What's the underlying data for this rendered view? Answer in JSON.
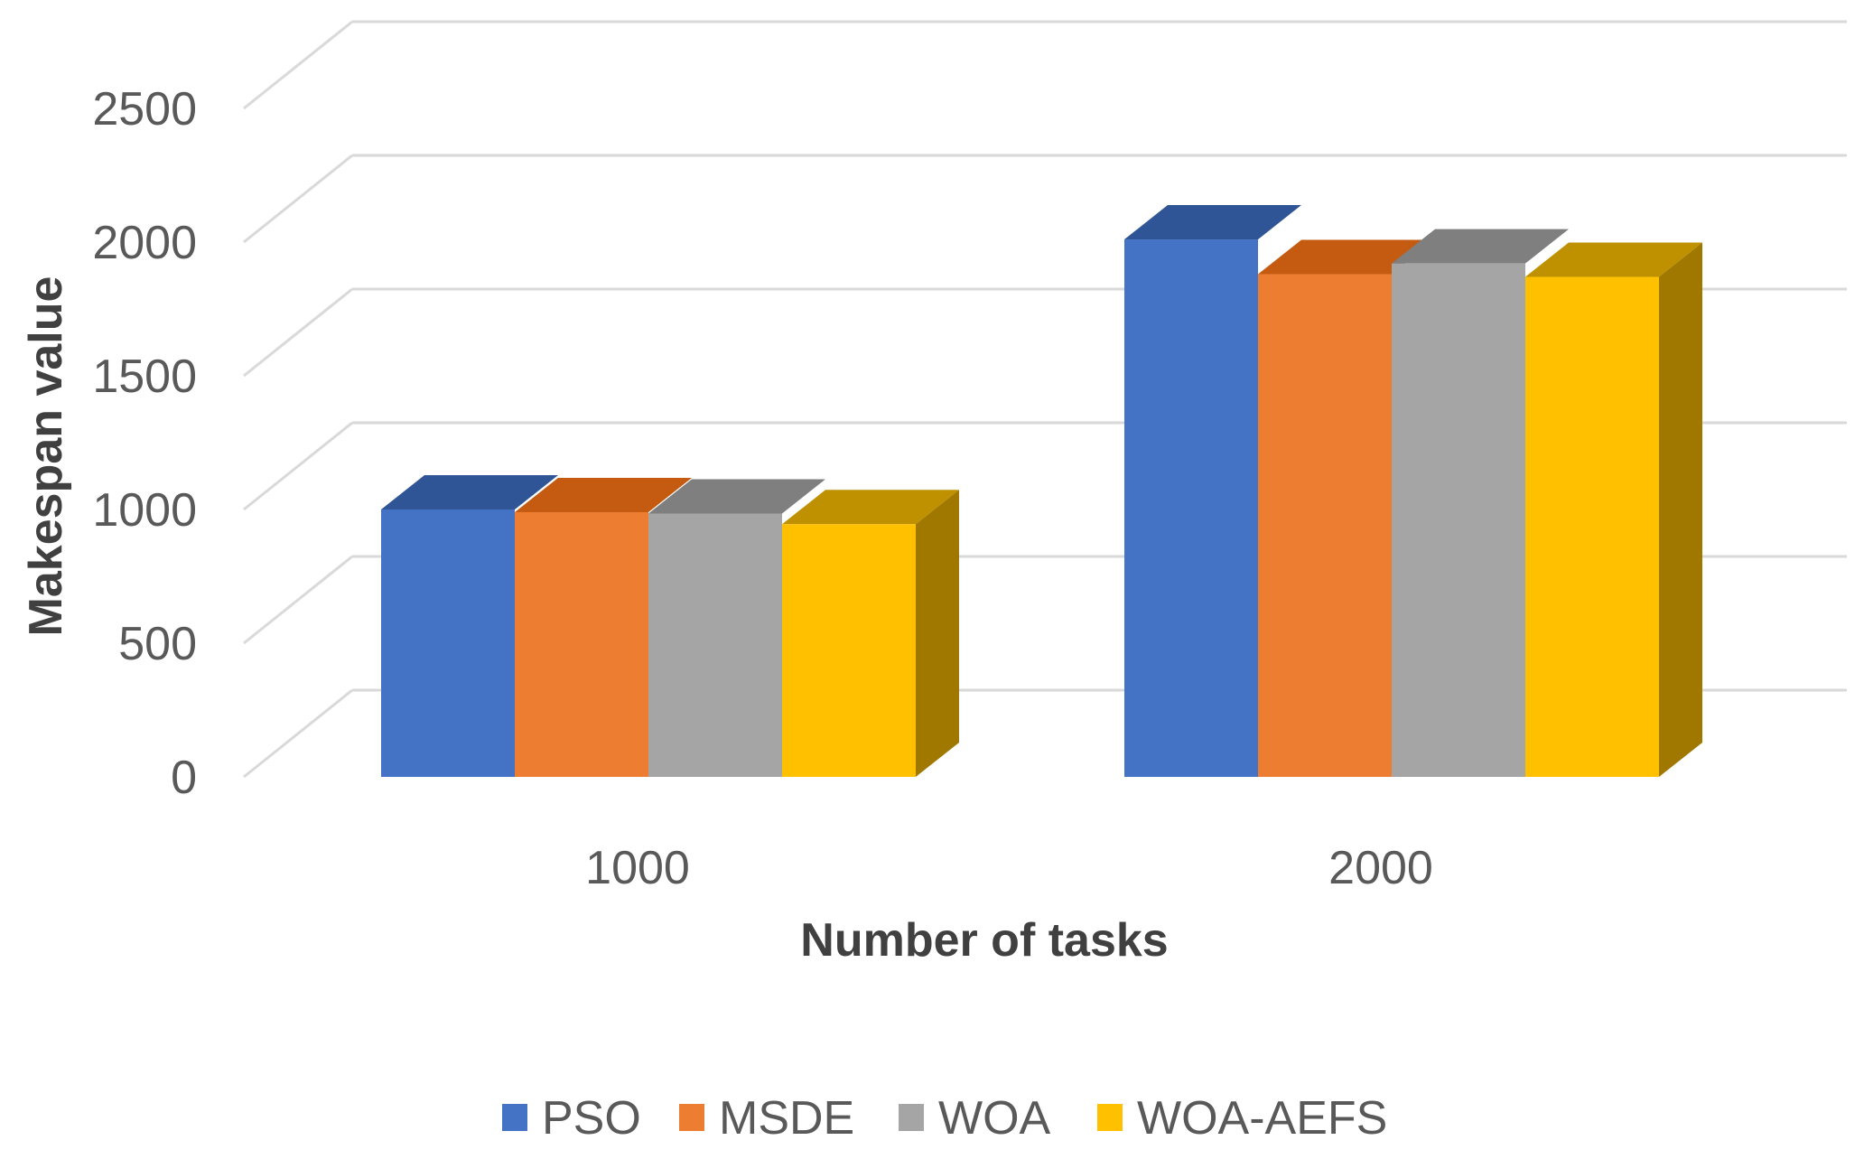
{
  "chart_data": {
    "type": "bar",
    "categories": [
      "1000",
      "2000"
    ],
    "series": [
      {
        "name": "PSO",
        "values": [
          1000,
          2010
        ]
      },
      {
        "name": "MSDE",
        "values": [
          990,
          1880
        ]
      },
      {
        "name": "WOA",
        "values": [
          985,
          1920
        ]
      },
      {
        "name": "WOA-AEFS",
        "values": [
          945,
          1870
        ]
      }
    ],
    "title": "",
    "xlabel": "Number of tasks",
    "ylabel": "Makespan  value",
    "ylim": [
      0,
      2500
    ],
    "yticks": [
      "0",
      "500",
      "1000",
      "1500",
      "2000",
      "2500"
    ],
    "grid": true,
    "legend": "bottom",
    "colors": {
      "PSO": {
        "front": "#4472C4",
        "top": "#2F5597",
        "side": "#2F5597"
      },
      "MSDE": {
        "front": "#ED7D31",
        "top": "#C55A11",
        "side": "#C55A11"
      },
      "WOA": {
        "front": "#A5A5A5",
        "top": "#7F7F7F",
        "side": "#7F7F7F"
      },
      "WOA-AEFS": {
        "front": "#FFC000",
        "top": "#BF9000",
        "side": "#A07800"
      }
    }
  }
}
